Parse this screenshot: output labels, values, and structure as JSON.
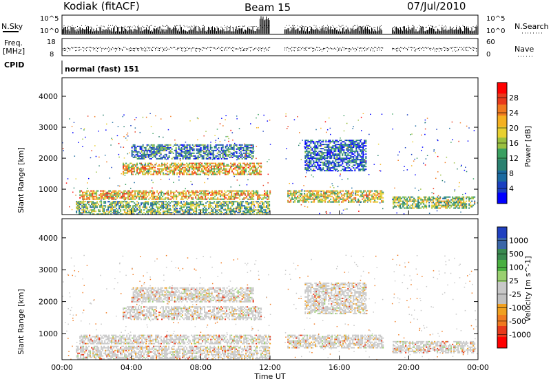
{
  "header": {
    "station": "Kodiak (fitACF)",
    "beam": "Beam 15",
    "date": "07/Jul/2010"
  },
  "panels": {
    "nsky": {
      "left_label": "N.Sky",
      "right_label": "N.Search",
      "left_ticks": [
        "10^5",
        "10^0"
      ],
      "right_ticks": [
        "10^5",
        "10^0"
      ]
    },
    "freq": {
      "left_label_1": "Freq.",
      "left_label_2": "[MHz]",
      "right_label": "Nave",
      "left_ticks": [
        "18",
        "8"
      ],
      "right_ticks": [
        "60",
        "0"
      ]
    },
    "cpid": {
      "left_label": "CPID",
      "value": "normal (fast) 151"
    }
  },
  "chart_data": [
    {
      "type": "heatmap",
      "name": "Power",
      "ylabel": "Slant Range [km]",
      "xlabel": "Time UT",
      "x_ticks": [
        "00:00",
        "04:00",
        "08:00",
        "12:00",
        "16:00",
        "20:00",
        "00:00"
      ],
      "x_range_hours": [
        0,
        24
      ],
      "y_ticks": [
        1000,
        2000,
        3000,
        4000
      ],
      "ylim": [
        180,
        4600
      ],
      "colorbar": {
        "label": "Power [dB]",
        "ticks": [
          "28",
          "24",
          "20",
          "16",
          "12",
          "8",
          "4"
        ],
        "colors": [
          "#ff0000",
          "#e83a1c",
          "#f07a20",
          "#f5b020",
          "#e8d030",
          "#9ac040",
          "#3aa060",
          "#2a8070",
          "#1a6aa0",
          "#1a40c0",
          "#0000ff"
        ]
      },
      "bands": [
        {
          "t0": 0.8,
          "t1": 12.0,
          "r0": 180,
          "r1": 600,
          "value": 14
        },
        {
          "t0": 1.0,
          "t1": 12.0,
          "r0": 650,
          "r1": 950,
          "value": 20
        },
        {
          "t0": 3.5,
          "t1": 11.5,
          "r0": 1450,
          "r1": 1850,
          "value": 20
        },
        {
          "t0": 4.0,
          "t1": 11.0,
          "r0": 2000,
          "r1": 2450,
          "value": 10
        },
        {
          "t0": 13.0,
          "t1": 18.5,
          "r0": 550,
          "r1": 950,
          "value": 18
        },
        {
          "t0": 14.0,
          "t1": 17.5,
          "r0": 1600,
          "r1": 2600,
          "value": 8
        },
        {
          "t0": 19.0,
          "t1": 23.8,
          "r0": 380,
          "r1": 750,
          "value": 16
        }
      ]
    },
    {
      "type": "heatmap",
      "name": "Velocity",
      "ylabel": "Slant Range [km]",
      "xlabel": "Time UT",
      "x_ticks": [
        "00:00",
        "04:00",
        "08:00",
        "12:00",
        "16:00",
        "20:00",
        "00:00"
      ],
      "x_range_hours": [
        0,
        24
      ],
      "y_ticks": [
        1000,
        2000,
        3000,
        4000
      ],
      "ylim": [
        180,
        4600
      ],
      "colorbar": {
        "label": "Velocity [m s^-1]",
        "ticks": [
          "1000",
          "500",
          "100",
          "25",
          "-25",
          "-100",
          "-500",
          "-1000"
        ],
        "colors": [
          "#2040c0",
          "#3a66a8",
          "#3a8a50",
          "#4ab040",
          "#9ad070",
          "#c8c8c8",
          "#c0c0c0",
          "#f0a020",
          "#f07a20",
          "#e83a1c",
          "#ff0000"
        ]
      },
      "bands": [
        {
          "t0": 0.8,
          "t1": 12.0,
          "r0": 180,
          "r1": 600,
          "value": 0
        },
        {
          "t0": 1.0,
          "t1": 12.0,
          "r0": 650,
          "r1": 950,
          "value": 0
        },
        {
          "t0": 3.5,
          "t1": 11.5,
          "r0": 1450,
          "r1": 1850,
          "value": 0
        },
        {
          "t0": 4.0,
          "t1": 11.0,
          "r0": 2000,
          "r1": 2450,
          "value": 0
        },
        {
          "t0": 13.0,
          "t1": 18.5,
          "r0": 550,
          "r1": 950,
          "value": 0
        },
        {
          "t0": 14.0,
          "t1": 17.5,
          "r0": 1600,
          "r1": 2600,
          "value": 0
        },
        {
          "t0": 19.0,
          "t1": 23.8,
          "r0": 380,
          "r1": 750,
          "value": 0
        }
      ]
    }
  ],
  "gaps_hours": [
    [
      12.0,
      12.8
    ],
    [
      18.5,
      19.0
    ]
  ]
}
